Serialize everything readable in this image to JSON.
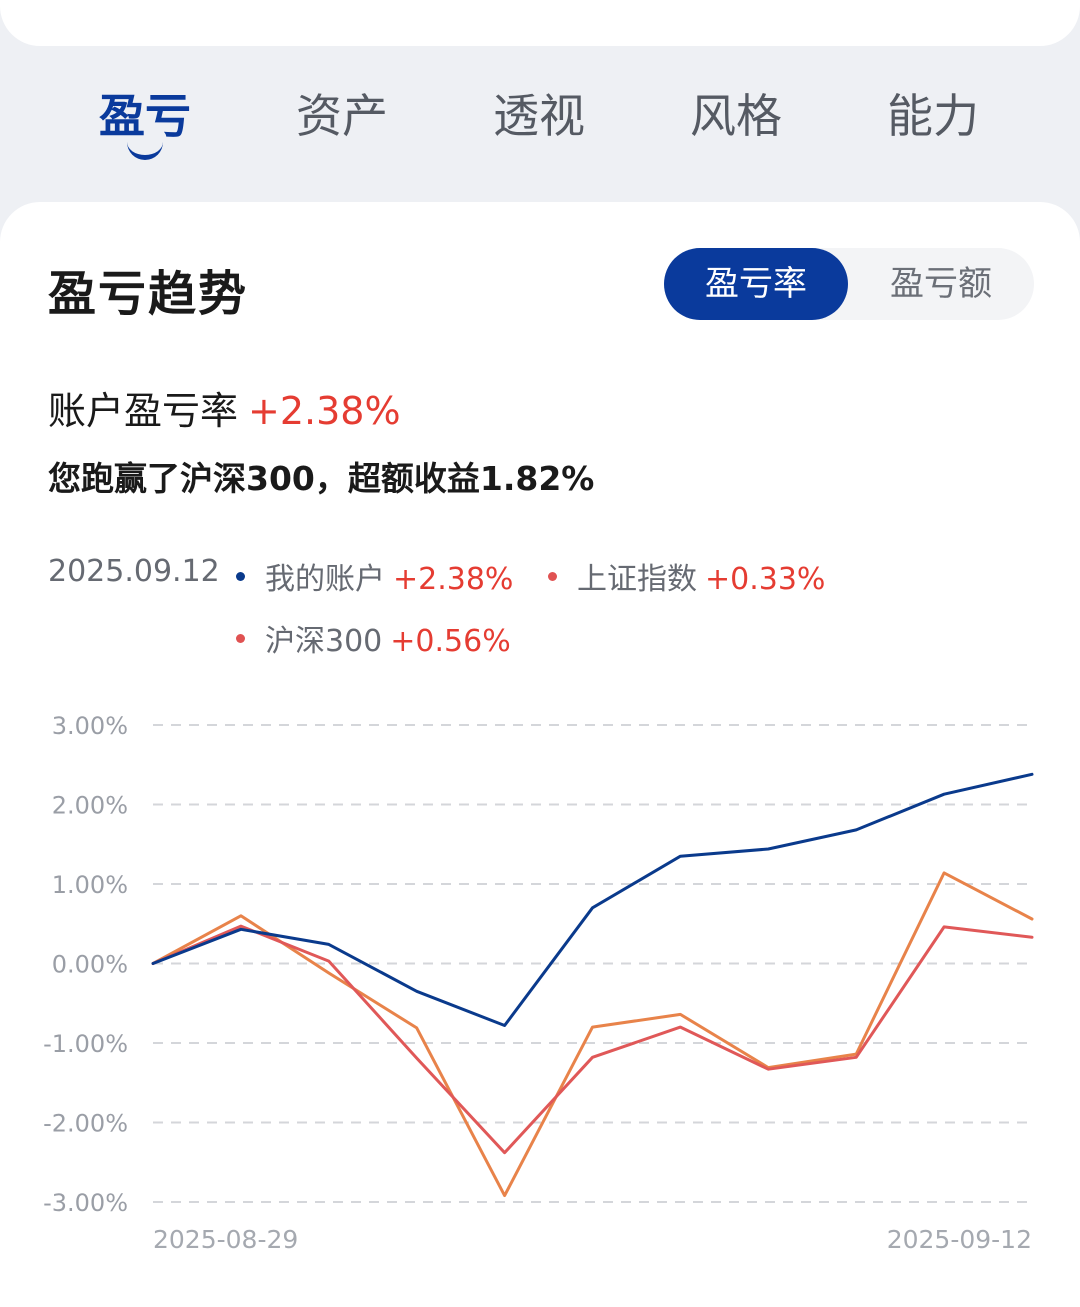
{
  "tabs": [
    {
      "label": "盈亏",
      "active": true
    },
    {
      "label": "资产",
      "active": false
    },
    {
      "label": "透视",
      "active": false
    },
    {
      "label": "风格",
      "active": false
    },
    {
      "label": "能力",
      "active": false
    }
  ],
  "section": {
    "title": "盈亏趋势",
    "toggle": {
      "active_label": "盈亏率",
      "inactive_label": "盈亏额"
    }
  },
  "summary": {
    "rate_label": "账户盈亏率",
    "rate_value": "+2.38%",
    "text": "您跑赢了沪深300，超额收益1.82%"
  },
  "legend": {
    "date": "2025.09.12",
    "items": [
      {
        "name": "我的账户",
        "value": "+2.38%",
        "color": "#0a3a8c"
      },
      {
        "name": "上证指数",
        "value": "+0.33%",
        "color": "#e05252"
      },
      {
        "name": "沪深300",
        "value": "+0.56%",
        "color": "#e05252"
      }
    ]
  },
  "colors": {
    "accent": "#0a3a9c",
    "positive": "#e53c32",
    "series_account": "#0a3a8c",
    "series_sse": "#e05858",
    "series_csi300": "#e8834a"
  },
  "chart_data": {
    "type": "line",
    "y_tick_labels": [
      "3.00%",
      "2.00%",
      "1.00%",
      "0.00%",
      "-1.00%",
      "-2.00%",
      "-3.00%"
    ],
    "ylim": [
      -3,
      3
    ],
    "x_start_label": "2025-08-29",
    "x_end_label": "2025-09-12",
    "grid": true,
    "series": [
      {
        "name": "我的账户",
        "color": "#0a3a8c",
        "values": [
          0.0,
          0.43,
          0.24,
          -0.35,
          -0.78,
          0.7,
          1.35,
          1.44,
          1.68,
          2.13,
          2.38
        ]
      },
      {
        "name": "上证指数",
        "color": "#e05858",
        "values": [
          0.0,
          0.47,
          0.03,
          -1.19,
          -2.38,
          -1.18,
          -0.8,
          -1.33,
          -1.18,
          0.46,
          0.33
        ]
      },
      {
        "name": "沪深300",
        "color": "#e8834a",
        "values": [
          0.0,
          0.6,
          -0.12,
          -0.81,
          -2.92,
          -0.8,
          -0.64,
          -1.31,
          -1.14,
          1.14,
          0.56
        ]
      }
    ]
  }
}
